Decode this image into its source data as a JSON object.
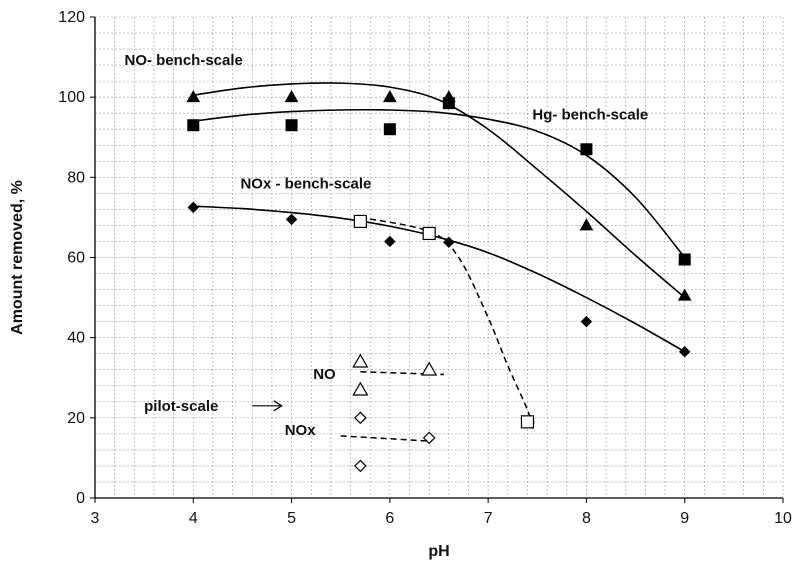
{
  "chart_data": {
    "type": "scatter",
    "title": "",
    "xlabel": "pH",
    "ylabel": "Amount removed, %",
    "xlim": [
      3,
      10
    ],
    "ylim": [
      0,
      120
    ],
    "x_ticks": [
      3,
      4,
      5,
      6,
      7,
      8,
      9,
      10
    ],
    "y_ticks": [
      0,
      20,
      40,
      60,
      80,
      100,
      120
    ],
    "grid": "dashed minor grid",
    "series": [
      {
        "marker": "filled-triangle",
        "points": [
          [
            4,
            100
          ],
          [
            5,
            100
          ],
          [
            6,
            100
          ],
          [
            6.6,
            100
          ],
          [
            8,
            68
          ],
          [
            9,
            50.5
          ]
        ]
      },
      {
        "marker": "filled-square",
        "points": [
          [
            4,
            93
          ],
          [
            5,
            93
          ],
          [
            6,
            92
          ],
          [
            6.6,
            98.5
          ],
          [
            8,
            87
          ],
          [
            9,
            59.5
          ]
        ]
      },
      {
        "marker": "filled-diamond",
        "points": [
          [
            4,
            72.5
          ],
          [
            5,
            69.5
          ],
          [
            6,
            64
          ],
          [
            6.6,
            63.8
          ],
          [
            8,
            44
          ],
          [
            9,
            36.5
          ]
        ]
      },
      {
        "marker": "open-square",
        "points": [
          [
            5.7,
            69
          ],
          [
            6.4,
            66
          ],
          [
            7.4,
            19
          ]
        ]
      },
      {
        "marker": "open-triangle",
        "points": [
          [
            5.7,
            34
          ],
          [
            5.7,
            27
          ],
          [
            6.4,
            32
          ]
        ]
      },
      {
        "marker": "open-diamond",
        "points": [
          [
            5.7,
            20
          ],
          [
            5.7,
            8
          ],
          [
            6.4,
            15
          ]
        ]
      }
    ],
    "curves": [
      {
        "style": "solid",
        "points": [
          [
            4,
            100.5
          ],
          [
            4.5,
            102.3
          ],
          [
            5,
            103.3
          ],
          [
            5.5,
            103.5
          ],
          [
            6,
            102.5
          ],
          [
            6.5,
            99.3
          ],
          [
            7,
            92
          ],
          [
            7.5,
            82
          ],
          [
            8,
            71.5
          ],
          [
            8.5,
            60.5
          ],
          [
            9,
            50
          ]
        ]
      },
      {
        "style": "solid",
        "points": [
          [
            4,
            94
          ],
          [
            4.5,
            95.5
          ],
          [
            5,
            96.4
          ],
          [
            5.5,
            96.8
          ],
          [
            6,
            96.8
          ],
          [
            6.5,
            96.2
          ],
          [
            7,
            94.5
          ],
          [
            7.5,
            91.5
          ],
          [
            8,
            85.5
          ],
          [
            8.5,
            75
          ],
          [
            9,
            60
          ]
        ]
      },
      {
        "style": "solid",
        "points": [
          [
            4,
            72.8
          ],
          [
            4.5,
            72.2
          ],
          [
            5,
            71.2
          ],
          [
            5.5,
            69.8
          ],
          [
            6,
            67.8
          ],
          [
            6.5,
            65
          ],
          [
            7,
            61.2
          ],
          [
            7.5,
            56
          ],
          [
            8,
            50
          ],
          [
            8.5,
            43.5
          ],
          [
            9,
            36.5
          ]
        ]
      },
      {
        "style": "dashed",
        "points": [
          [
            5.7,
            70
          ],
          [
            6.4,
            66.5
          ],
          [
            6.7,
            60
          ],
          [
            7,
            45
          ],
          [
            7.2,
            33
          ],
          [
            7.4,
            22
          ],
          [
            7.45,
            17.5
          ]
        ]
      },
      {
        "style": "dashed",
        "points": [
          [
            5.7,
            31.5
          ],
          [
            6.55,
            30.8
          ]
        ]
      },
      {
        "style": "dashed",
        "points": [
          [
            5.5,
            15.5
          ],
          [
            6.4,
            14.2
          ]
        ]
      }
    ],
    "annotations": [
      {
        "text": "NO- bench-scale",
        "x": 3.3,
        "y": 108
      },
      {
        "text": "Hg- bench-scale",
        "x": 7.45,
        "y": 94.4
      },
      {
        "text": "NOx - bench-scale",
        "x": 4.48,
        "y": 77.2
      },
      {
        "text": "NO",
        "x": 5.22,
        "y": 29.7
      },
      {
        "text": "pilot-scale",
        "x": 3.5,
        "y": 21.7
      },
      {
        "text": "NOx",
        "x": 4.93,
        "y": 15.7
      }
    ],
    "arrow": {
      "from": [
        4.6,
        23
      ],
      "to": [
        4.9,
        23
      ]
    }
  }
}
